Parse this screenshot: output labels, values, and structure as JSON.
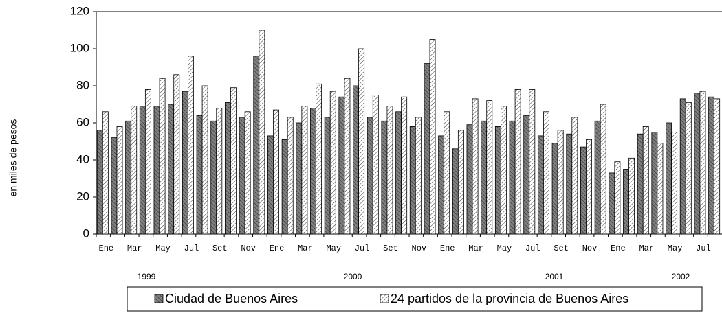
{
  "chart_data": {
    "type": "bar",
    "y_label": "en miles de pesos",
    "categories": [
      "Ene",
      null,
      "Mar",
      null,
      "May",
      null,
      "Jul",
      null,
      "Set",
      null,
      "Nov",
      null,
      "Ene",
      null,
      "Mar",
      null,
      "May",
      null,
      "Jul",
      null,
      "Set",
      null,
      "Nov",
      null,
      "Ene",
      null,
      "Mar",
      null,
      "May",
      null,
      "Jul",
      null,
      "Set",
      null,
      "Nov",
      null,
      "Ene",
      null,
      "Mar",
      null,
      "May",
      null,
      "Jul",
      null
    ],
    "year_labels": [
      "1999",
      "2000",
      "2001",
      "2002"
    ],
    "series": [
      {
        "name": "Ciudad de Buenos Aires",
        "color": "#808080",
        "values": [
          56,
          52,
          61,
          69,
          69,
          70,
          77,
          64,
          61,
          71,
          63,
          96,
          53,
          51,
          60,
          68,
          63,
          74,
          80,
          63,
          61,
          66,
          58,
          92,
          53,
          46,
          59,
          61,
          58,
          61,
          64,
          53,
          49,
          54,
          47,
          61,
          33,
          35,
          54,
          55,
          60,
          73,
          76,
          74
        ]
      },
      {
        "name": "24 partidos de la provincia de Buenos Aires",
        "color": "#ffffff",
        "values": [
          66,
          58,
          69,
          78,
          84,
          86,
          96,
          80,
          68,
          79,
          66,
          110,
          67,
          63,
          69,
          81,
          77,
          84,
          100,
          75,
          69,
          74,
          63,
          105,
          66,
          56,
          73,
          72,
          69,
          78,
          78,
          66,
          56,
          63,
          51,
          70,
          39,
          41,
          58,
          49,
          55,
          71,
          77,
          73
        ]
      }
    ],
    "ylim": [
      0,
      120
    ],
    "yticks": [
      0,
      20,
      40,
      60,
      80,
      100,
      120
    ],
    "grid": false
  }
}
